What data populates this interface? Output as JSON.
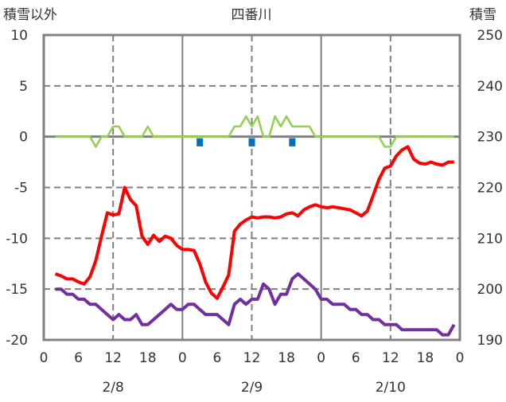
{
  "chart_data": {
    "type": "line",
    "title": "四番川",
    "ylabel_left": "積雪以外",
    "ylabel_right": "積雪",
    "ylim_left": [
      -20,
      10
    ],
    "yticks_left": [
      "10",
      "5",
      "0",
      "-5",
      "-10",
      "-15",
      "-20"
    ],
    "ylim_right": [
      190,
      250
    ],
    "yticks_right": [
      "250",
      "240",
      "230",
      "220",
      "210",
      "200",
      "190"
    ],
    "xlim_hours": [
      0,
      72
    ],
    "xtick_labels": [
      "0",
      "6",
      "12",
      "18",
      "0",
      "6",
      "12",
      "18",
      "0",
      "6",
      "12",
      "18",
      "0"
    ],
    "date_labels": [
      "2/8",
      "2/9",
      "2/10"
    ],
    "grid": true,
    "colors": {
      "red": "#ff0000",
      "purple": "#7030a0",
      "green": "#92d050",
      "blue": "#0070c0",
      "axis": "#808080"
    },
    "x_start_hour": 2,
    "series": [
      {
        "name": "red",
        "axis": "left",
        "color": "#ff0000",
        "values": [
          -13.5,
          -13.7,
          -14.0,
          -14.0,
          -14.3,
          -14.5,
          -13.8,
          -12.2,
          -9.8,
          -7.5,
          -7.7,
          -7.6,
          -5.0,
          -6.2,
          -6.8,
          -9.8,
          -10.6,
          -9.7,
          -10.3,
          -9.8,
          -10.0,
          -10.7,
          -11.1,
          -11.1,
          -11.2,
          -12.5,
          -14.3,
          -15.4,
          -15.9,
          -14.8,
          -13.6,
          -9.3,
          -8.6,
          -8.2,
          -7.9,
          -8.0,
          -7.9,
          -7.9,
          -8.0,
          -7.9,
          -7.6,
          -7.5,
          -7.8,
          -7.2,
          -6.9,
          -6.7,
          -6.9,
          -7.0,
          -6.9,
          -7.0,
          -7.1,
          -7.2,
          -7.5,
          -7.8,
          -7.3,
          -5.8,
          -4.2,
          -3.1,
          -2.9,
          -1.9,
          -1.3,
          -1.0,
          -2.2,
          -2.6,
          -2.7,
          -2.5,
          -2.7,
          -2.8,
          -2.5,
          -2.5
        ]
      },
      {
        "name": "purple",
        "axis": "right",
        "color": "#7030a0",
        "values": [
          200,
          200,
          199,
          199,
          198,
          198,
          197,
          197,
          196,
          195,
          194,
          195,
          194,
          194,
          195,
          193,
          193,
          194,
          195,
          196,
          197,
          196,
          196,
          197,
          197,
          196,
          195,
          195,
          195,
          194,
          193,
          197,
          198,
          197,
          198,
          198,
          201,
          200,
          197,
          199,
          199,
          202,
          203,
          202,
          201,
          200,
          198,
          198,
          197,
          197,
          197,
          196,
          196,
          195,
          195,
          194,
          194,
          193,
          193,
          193,
          192,
          192,
          192,
          192,
          192,
          192,
          192,
          191,
          191,
          193
        ]
      },
      {
        "name": "green",
        "axis": "left",
        "color": "#92d050",
        "values": [
          0,
          0,
          0,
          0,
          0,
          0,
          0,
          -1,
          0,
          0,
          1,
          1,
          0,
          0,
          0,
          0,
          1,
          0,
          0,
          0,
          0,
          0,
          0,
          0,
          0,
          0,
          0,
          0,
          0,
          0,
          0,
          1,
          1,
          2,
          1,
          2,
          0,
          0,
          2,
          1,
          2,
          1,
          1,
          1,
          1,
          0,
          0,
          0,
          0,
          0,
          0,
          0,
          0,
          0,
          0,
          0,
          0,
          -1,
          -1,
          0,
          0,
          0,
          0,
          0,
          0,
          0,
          0,
          0,
          0,
          0
        ]
      }
    ],
    "bars": {
      "name": "blue",
      "axis": "left",
      "color": "#0070c0",
      "hours": [
        27,
        36,
        43
      ],
      "values": [
        -0.8,
        -0.8,
        -0.8
      ]
    }
  }
}
